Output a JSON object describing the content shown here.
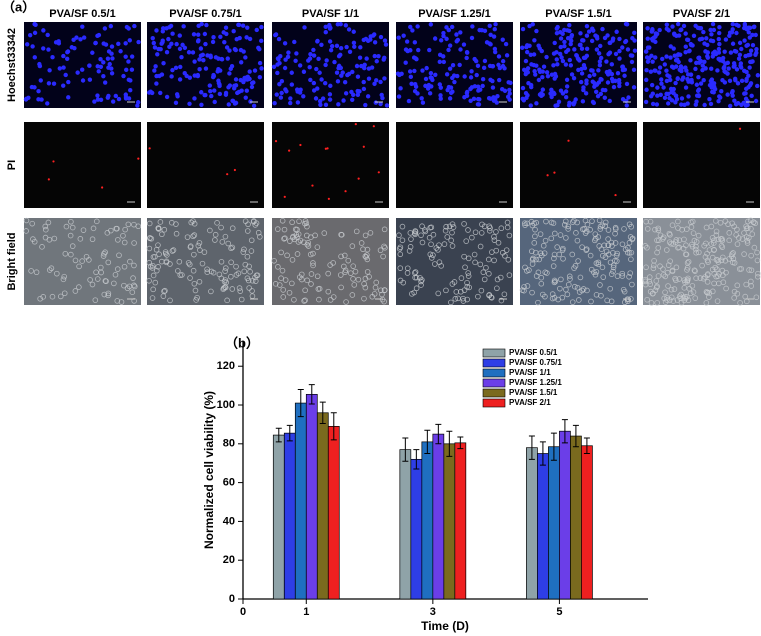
{
  "panel_a": {
    "label": "（a）",
    "columns": [
      "PVA/SF 0.5/1",
      "PVA/SF 0.75/1",
      "PVA/SF 1/1",
      "PVA/SF 1.25/1",
      "PVA/SF 1.5/1",
      "PVA/SF 2/1"
    ],
    "rows": [
      "Hoechst33342",
      "PI",
      "Bright field"
    ]
  },
  "chart_data": {
    "type": "bar",
    "panel_label": "（b）",
    "x_label": "Time (D)",
    "y_label": "Normalized cell viability (%)",
    "x": [
      1,
      3,
      5
    ],
    "xlim": [
      0,
      6.4
    ],
    "xticks": [
      0,
      1,
      3,
      5
    ],
    "ylim": [
      0,
      133
    ],
    "yticks": [
      0,
      20,
      40,
      60,
      80,
      100,
      120
    ],
    "legend": "top-right",
    "series": [
      {
        "name": "PVA/SF 0.5/1",
        "color": "#8fa3a8",
        "values": [
          84.5,
          77,
          78
        ],
        "errors": [
          3.5,
          6,
          6
        ]
      },
      {
        "name": "PVA/SF  0.75/1",
        "color": "#2e3ee6",
        "values": [
          85.5,
          72,
          75
        ],
        "errors": [
          4,
          5,
          6
        ]
      },
      {
        "name": "PVA/SF 1/1",
        "color": "#1f6fc0",
        "values": [
          101,
          81,
          78.5
        ],
        "errors": [
          7,
          6,
          7
        ]
      },
      {
        "name": "PVA/SF  1.25/1",
        "color": "#6b3ee8",
        "values": [
          105.5,
          85,
          86.5
        ],
        "errors": [
          5,
          5,
          6
        ]
      },
      {
        "name": "PVA/SF  1.5/1",
        "color": "#7a6a1e",
        "values": [
          96,
          80,
          84
        ],
        "errors": [
          5.5,
          6.5,
          5.5
        ]
      },
      {
        "name": "PVA/SF  2/1",
        "color": "#ee2020",
        "values": [
          89,
          80.5,
          79
        ],
        "errors": [
          7,
          3,
          4
        ]
      }
    ]
  }
}
